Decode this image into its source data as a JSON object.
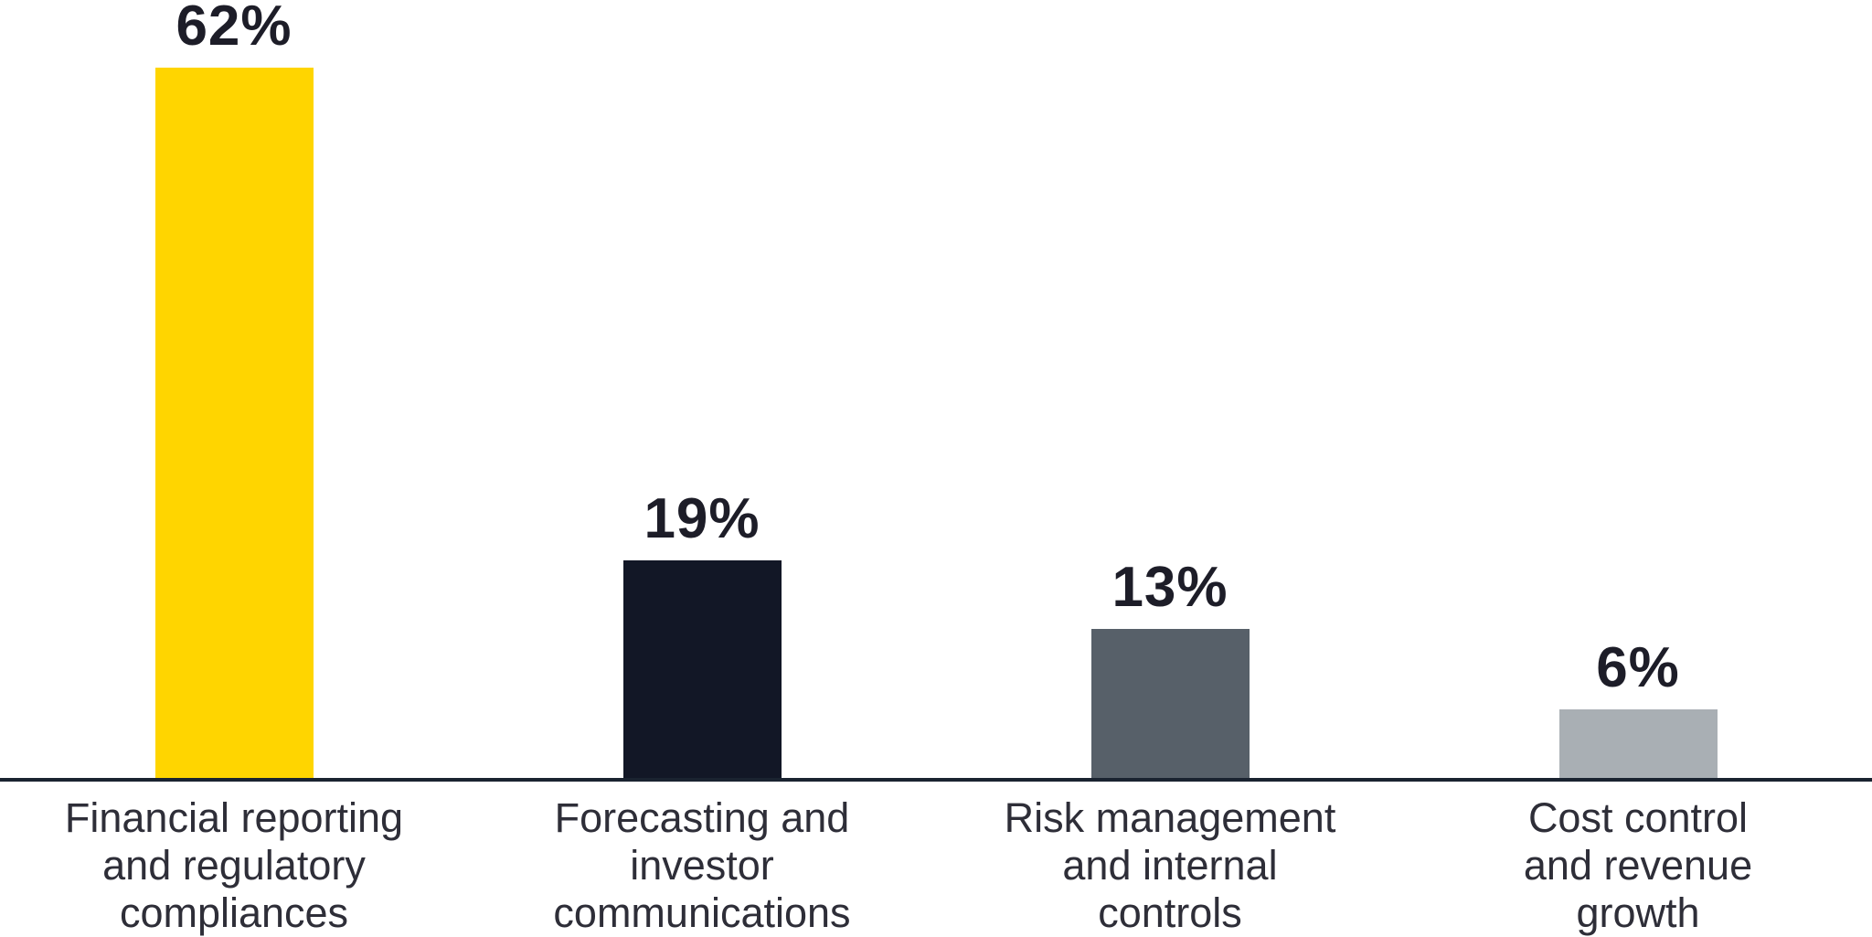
{
  "chart_data": {
    "type": "bar",
    "title": "",
    "xlabel": "",
    "ylabel": "",
    "ylim": [
      0,
      65
    ],
    "grid": false,
    "legend": false,
    "background": "#FFFFFF",
    "axis_line_color": "#1A2330",
    "value_label_color": "#1D1D28",
    "category_label_color": "#2E2E38",
    "categories": [
      "Financial reporting\nand regulatory\ncompliances",
      "Forecasting and\ninvestor\ncommunications",
      "Risk management\nand internal\ncontrols",
      "Cost control\nand revenue\ngrowth"
    ],
    "values": [
      62,
      19,
      13,
      6
    ],
    "bars": [
      {
        "category": "Financial reporting\nand regulatory\ncompliances",
        "value": 62,
        "display": "62%",
        "color": "#FFD500"
      },
      {
        "category": "Forecasting and\ninvestor\ncommunications",
        "value": 19,
        "display": "19%",
        "color": "#121726"
      },
      {
        "category": "Risk management\nand internal\ncontrols",
        "value": 13,
        "display": "13%",
        "color": "#576069"
      },
      {
        "category": "Cost control\nand revenue\ngrowth",
        "value": 6,
        "display": "6%",
        "color": "#A9AFB4"
      }
    ]
  }
}
